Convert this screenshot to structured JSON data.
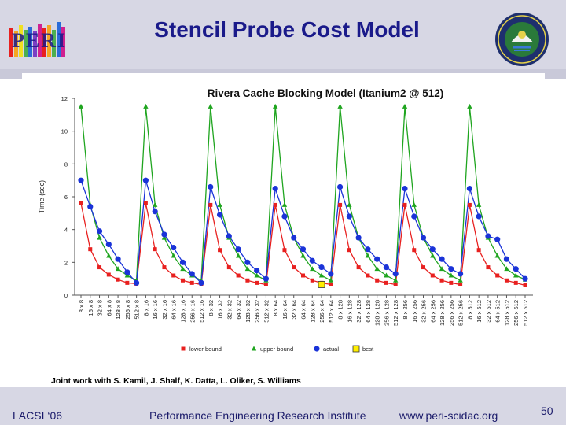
{
  "header": {
    "title": "Stencil Probe Cost Model",
    "logo_text": "PERI"
  },
  "chart_data": {
    "type": "line",
    "title": "Rivera Cache Blocking Model (Itanium2 @ 512)",
    "ylabel": "Time (sec)",
    "xlabel": "",
    "ylim": [
      0,
      12
    ],
    "yticks": [
      0,
      2,
      4,
      6,
      8,
      10,
      12
    ],
    "grid": false,
    "legend_position": "bottom",
    "categories": [
      "8 x 8",
      "16 x 8",
      "32 x 8",
      "64 x 8",
      "128 x 8",
      "256 x 8",
      "512 x 8",
      "8 x 16",
      "16 x 16",
      "32 x 16",
      "64 x 16",
      "128 x 16",
      "256 x 16",
      "512 x 16",
      "8 x 32",
      "16 x 32",
      "32 x 32",
      "64 x 32",
      "128 x 32",
      "256 x 32",
      "512 x 32",
      "8 x 64",
      "16 x 64",
      "32 x 64",
      "64 x 64",
      "128 x 64",
      "256 x 64",
      "512 x 64",
      "8 x 128",
      "16 x 128",
      "32 x 128",
      "64 x 128",
      "128 x 128",
      "256 x 128",
      "512 x 128",
      "8 x 256",
      "16 x 256",
      "32 x 256",
      "64 x 256",
      "128 x 256",
      "256 x 256",
      "512 x 256",
      "8 x 512",
      "16 x 512",
      "32 x 512",
      "64 x 512",
      "128 x 512",
      "256 x 512",
      "512 x 512"
    ],
    "series": [
      {
        "name": "lower bound",
        "color": "#e8201f",
        "marker": "square",
        "values": [
          5.6,
          2.8,
          1.7,
          1.25,
          0.95,
          0.75,
          0.7,
          5.6,
          2.8,
          1.7,
          1.2,
          0.9,
          0.75,
          0.65,
          5.5,
          2.75,
          1.7,
          1.2,
          0.9,
          0.75,
          0.65,
          5.5,
          2.75,
          1.7,
          1.2,
          0.9,
          0.75,
          0.65,
          5.5,
          2.75,
          1.7,
          1.2,
          0.9,
          0.75,
          0.65,
          5.5,
          2.75,
          1.7,
          1.2,
          0.9,
          0.75,
          0.65,
          5.5,
          2.75,
          1.7,
          1.2,
          0.9,
          0.75,
          0.6
        ]
      },
      {
        "name": "upper bound",
        "color": "#1fa51f",
        "marker": "triangle",
        "values": [
          11.5,
          5.5,
          3.5,
          2.4,
          1.6,
          1.2,
          0.9,
          11.5,
          5.5,
          3.5,
          2.4,
          1.6,
          1.2,
          0.9,
          11.5,
          5.5,
          3.5,
          2.4,
          1.6,
          1.2,
          0.9,
          11.5,
          5.5,
          3.5,
          2.4,
          1.6,
          1.2,
          0.9,
          11.5,
          5.5,
          3.5,
          2.4,
          1.6,
          1.2,
          0.9,
          11.5,
          5.5,
          3.5,
          2.4,
          1.6,
          1.2,
          0.9,
          11.5,
          5.5,
          3.5,
          2.4,
          1.6,
          1.2,
          0.95
        ]
      },
      {
        "name": "actual",
        "color": "#1a33d8",
        "marker": "circle",
        "values": [
          7.0,
          5.4,
          3.9,
          3.1,
          2.2,
          1.4,
          0.75,
          7.0,
          5.1,
          3.7,
          2.9,
          2.0,
          1.3,
          0.75,
          6.6,
          4.9,
          3.6,
          2.8,
          2.0,
          1.5,
          1.0,
          6.5,
          4.8,
          3.5,
          2.8,
          2.1,
          1.7,
          1.3,
          6.6,
          4.8,
          3.5,
          2.8,
          2.2,
          1.7,
          1.3,
          6.5,
          4.8,
          3.5,
          2.8,
          2.2,
          1.6,
          1.3,
          6.5,
          4.8,
          3.6,
          3.4,
          2.2,
          1.6,
          1.0
        ]
      },
      {
        "name": "best",
        "color": "#ffee00",
        "marker": "square-outline",
        "points": [
          {
            "category": "256 x 64",
            "value": 0.65
          }
        ]
      }
    ]
  },
  "credits": "Joint work with S. Kamil, J. Shalf, K. Datta, L. Oliker, S. Williams",
  "footer": {
    "left": "LACSI ‘06",
    "center": "Performance Engineering Research Institute",
    "right": "www.peri-scidac.org",
    "page": "50"
  }
}
